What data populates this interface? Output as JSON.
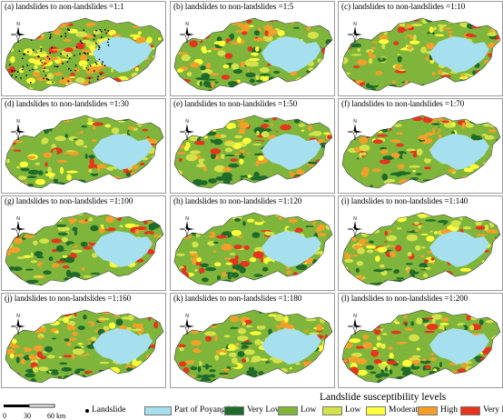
{
  "panels": [
    {
      "title": "(a)  landslides to non-landslides =1:1"
    },
    {
      "title": "(b) landslides to non-landslides =1:5"
    },
    {
      "title": "(c) landslides to non-landslides =1:10"
    },
    {
      "title": "(d) landslides to non-landslides =1:30"
    },
    {
      "title": "(e) landslides to non-landslides =1:50"
    },
    {
      "title": "(f) landslides to non-landslides =1:70"
    },
    {
      "title": "(g) landslides to non-landslides =1:100"
    },
    {
      "title": "(h) landslides to non-landslides =1:120"
    },
    {
      "title": "(i) landslides to non-landslides =1:140"
    },
    {
      "title": "(j) landslides to non-landslides =1:160"
    },
    {
      "title": "(k) landslides to non-landslides =1:180"
    },
    {
      "title": "(l) landslides to non-landslides =1:200"
    }
  ],
  "legend": {
    "title": "Landslide susceptibility levels",
    "scale": {
      "zero": "0",
      "mid": "30",
      "end": "60",
      "unit": "km"
    },
    "items": [
      {
        "label": "Landslide",
        "color": "#000000",
        "kind": "dot"
      },
      {
        "label": "Part of Poyang lake",
        "color": "#a6dfee",
        "kind": "swatch"
      },
      {
        "label": "Very Low",
        "color": "#1f6b2a",
        "kind": "swatch"
      },
      {
        "label": "Low",
        "color": "#7fb53a",
        "kind": "swatch"
      },
      {
        "label": "Low",
        "color": "#d4e24a",
        "kind": "swatch"
      },
      {
        "label": "Moderate",
        "color": "#ffff3a",
        "kind": "swatch"
      },
      {
        "label": "High",
        "color": "#f2a02a",
        "kind": "swatch"
      },
      {
        "label": "Very High",
        "color": "#e8341c",
        "kind": "swatch"
      }
    ]
  },
  "compass": {
    "north_label": "N"
  }
}
